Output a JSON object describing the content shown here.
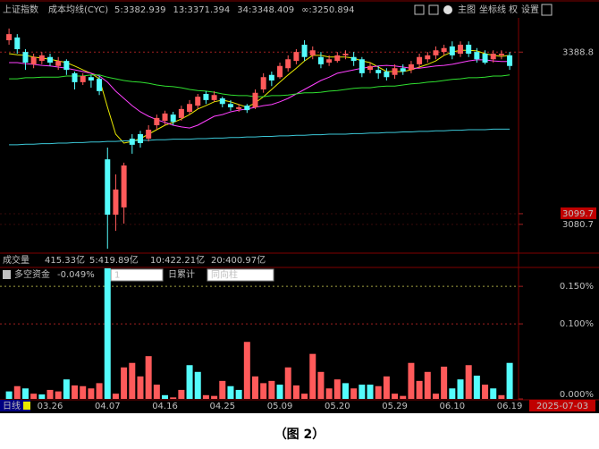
{
  "header": {
    "index_name": "上证指数",
    "indicator": "成本均线(CYC)"
  },
  "toolbar": [
    "主图",
    "坐标线",
    "权",
    "设置"
  ],
  "volume_bar": {
    "title": "成交量",
    "value": "415.33亿",
    "ma": [
      "5:419.89亿",
      "10:422.21亿",
      "20:400.97亿"
    ]
  },
  "indicator_bar": {
    "title": "多空资金",
    "value": "-0.049%",
    "period": "1",
    "mode": "日累计",
    "style": "同向柱"
  },
  "footer": {
    "period": "日线",
    "date": "2025-07-03"
  },
  "caption": "（图 2）",
  "chart_data": [
    {
      "type": "candlestick",
      "categories": [
        null,
        null,
        null,
        null,
        null,
        "03.26",
        null,
        null,
        null,
        null,
        null,
        null,
        "04.07",
        null,
        null,
        null,
        null,
        null,
        null,
        "04.16",
        null,
        null,
        null,
        null,
        null,
        null,
        "04.25",
        null,
        null,
        null,
        null,
        null,
        null,
        "05.09",
        null,
        null,
        null,
        null,
        null,
        null,
        "05.20",
        null,
        null,
        null,
        null,
        null,
        null,
        "05.29",
        null,
        null,
        null,
        null,
        null,
        null,
        "06.10",
        null,
        null,
        null,
        null,
        null,
        null,
        "06.19"
      ],
      "open": [
        3410,
        3415,
        3389,
        3367,
        3373,
        3380,
        3364,
        3373,
        3351,
        3335,
        3344,
        3341,
        3197,
        3098,
        3111,
        3234,
        3242,
        3234,
        3258,
        3266,
        3277,
        3271,
        3282,
        3293,
        3314,
        3303,
        3306,
        3296,
        3287,
        3293,
        3290,
        3322,
        3348,
        3344,
        3360,
        3373,
        3402,
        3383,
        3380,
        3370,
        3373,
        3383,
        3380,
        3376,
        3357,
        3357,
        3354,
        3348,
        3360,
        3357,
        3367,
        3376,
        3383,
        3389,
        3399,
        3386,
        3402,
        3389,
        3386,
        3376,
        3383,
        3383
      ],
      "high": [
        3431,
        3421,
        3394,
        3386,
        3389,
        3386,
        3380,
        3376,
        3354,
        3351,
        3348,
        3346,
        3218,
        3170,
        3191,
        3242,
        3248,
        3258,
        3277,
        3284,
        3282,
        3293,
        3303,
        3314,
        3319,
        3319,
        3309,
        3303,
        3296,
        3296,
        3322,
        3351,
        3354,
        3370,
        3383,
        3394,
        3410,
        3399,
        3389,
        3383,
        3389,
        3392,
        3389,
        3380,
        3370,
        3364,
        3360,
        3367,
        3367,
        3373,
        3386,
        3389,
        3399,
        3402,
        3408,
        3408,
        3408,
        3396,
        3392,
        3392,
        3392,
        3389
      ],
      "low": [
        3402,
        3386,
        3357,
        3360,
        3367,
        3364,
        3357,
        3348,
        3322,
        3330,
        3325,
        3312,
        3037,
        3069,
        3082,
        3207,
        3218,
        3229,
        3250,
        3258,
        3258,
        3266,
        3277,
        3287,
        3296,
        3300,
        3290,
        3284,
        3282,
        3280,
        3287,
        3316,
        3328,
        3341,
        3354,
        3367,
        3373,
        3376,
        3360,
        3364,
        3370,
        3376,
        3364,
        3344,
        3351,
        3341,
        3338,
        3341,
        3348,
        3351,
        3360,
        3370,
        3376,
        3383,
        3376,
        3380,
        3380,
        3370,
        3367,
        3370,
        3376,
        3357
      ],
      "close": [
        3421,
        3394,
        3370,
        3380,
        3383,
        3370,
        3373,
        3357,
        3335,
        3346,
        3338,
        3319,
        3098,
        3143,
        3186,
        3223,
        3226,
        3250,
        3271,
        3279,
        3264,
        3287,
        3296,
        3309,
        3303,
        3312,
        3296,
        3290,
        3290,
        3285,
        3316,
        3344,
        3338,
        3364,
        3376,
        3389,
        3380,
        3392,
        3367,
        3376,
        3383,
        3386,
        3373,
        3351,
        3364,
        3351,
        3344,
        3360,
        3354,
        3367,
        3380,
        3383,
        3392,
        3396,
        3383,
        3402,
        3386,
        3376,
        3370,
        3386,
        3386,
        3364
      ],
      "up_color": "#ff5a5a",
      "down_color": "#54fcfc",
      "series": [
        {
          "name": "5:3382.939",
          "color": "#e8e800",
          "values": [
            3386,
            3384,
            3383,
            3380,
            3378,
            3376,
            3373,
            3370,
            3364,
            3357,
            3351,
            3341,
            3290,
            3242,
            3226,
            3229,
            3234,
            3242,
            3250,
            3258,
            3263,
            3269,
            3277,
            3287,
            3293,
            3300,
            3303,
            3300,
            3295,
            3290,
            3298,
            3309,
            3322,
            3335,
            3348,
            3360,
            3373,
            3383,
            3383,
            3380,
            3380,
            3380,
            3378,
            3373,
            3370,
            3362,
            3354,
            3354,
            3354,
            3357,
            3362,
            3367,
            3373,
            3383,
            3389,
            3392,
            3392,
            3391,
            3386,
            3383,
            3381,
            3383
          ]
        },
        {
          "name": "13:3371.394",
          "color": "#ff40ff",
          "values": [
            3370,
            3370,
            3368,
            3367,
            3365,
            3364,
            3362,
            3360,
            3357,
            3354,
            3351,
            3346,
            3335,
            3319,
            3306,
            3293,
            3282,
            3274,
            3268,
            3263,
            3258,
            3255,
            3253,
            3258,
            3266,
            3274,
            3277,
            3282,
            3285,
            3287,
            3290,
            3293,
            3295,
            3300,
            3306,
            3314,
            3322,
            3330,
            3338,
            3344,
            3351,
            3354,
            3357,
            3360,
            3362,
            3364,
            3365,
            3364,
            3362,
            3360,
            3360,
            3362,
            3364,
            3365,
            3367,
            3370,
            3373,
            3375,
            3375,
            3373,
            3372,
            3372
          ]
        },
        {
          "name": "34:3348.409",
          "color": "#30e030",
          "values": [
            3341,
            3341,
            3343,
            3343,
            3344,
            3344,
            3344,
            3346,
            3346,
            3346,
            3348,
            3348,
            3344,
            3341,
            3338,
            3336,
            3335,
            3333,
            3330,
            3328,
            3327,
            3325,
            3322,
            3320,
            3319,
            3317,
            3314,
            3312,
            3311,
            3311,
            3309,
            3309,
            3311,
            3311,
            3312,
            3314,
            3316,
            3316,
            3317,
            3319,
            3320,
            3322,
            3324,
            3325,
            3325,
            3327,
            3328,
            3328,
            3330,
            3332,
            3333,
            3335,
            3336,
            3338,
            3340,
            3341,
            3343,
            3343,
            3344,
            3346,
            3346,
            3348
          ]
        },
        {
          "name": "∞:3250.894",
          "color": "#3cc8d8",
          "values": [
            3223,
            3223,
            3224,
            3224,
            3225,
            3225,
            3226,
            3226,
            3227,
            3227,
            3228,
            3228,
            3229,
            3229,
            3230,
            3230,
            3231,
            3231,
            3232,
            3232,
            3233,
            3233,
            3233,
            3234,
            3234,
            3235,
            3235,
            3236,
            3236,
            3237,
            3237,
            3238,
            3238,
            3239,
            3239,
            3240,
            3240,
            3241,
            3241,
            3242,
            3242,
            3242,
            3243,
            3243,
            3244,
            3244,
            3245,
            3245,
            3246,
            3246,
            3247,
            3247,
            3248,
            3248,
            3249,
            3249,
            3250,
            3250,
            3250,
            3251,
            3251,
            3251
          ]
        }
      ],
      "ylim": [
        3034,
        3450
      ],
      "yticks": [
        3388.8,
        3099.7,
        3080.7
      ],
      "grid": true
    },
    {
      "type": "bar",
      "values": [
        0.01,
        0.017,
        0.014,
        0.007,
        0.006,
        0.012,
        0.01,
        0.026,
        0.018,
        0.017,
        0.014,
        0.021,
        0.174,
        0.007,
        0.042,
        0.048,
        0.03,
        0.057,
        0.019,
        0.005,
        0.002,
        0.012,
        0.045,
        0.036,
        0.005,
        0.004,
        0.024,
        0.017,
        0.012,
        0.076,
        0.03,
        0.021,
        0.024,
        0.019,
        0.042,
        0.018,
        0.007,
        0.06,
        0.036,
        0.014,
        0.026,
        0.021,
        0.014,
        0.019,
        0.019,
        0.017,
        0.03,
        0.007,
        0.004,
        0.048,
        0.024,
        0.036,
        0.007,
        0.043,
        0.014,
        0.026,
        0.045,
        0.031,
        0.019,
        0.014,
        0.005,
        0.048
      ],
      "colors": [
        "#54fcfc",
        "#ff5a5a",
        "#54fcfc",
        "#ff5a5a",
        "#54fcfc",
        "#ff5a5a",
        "#ff5a5a",
        "#54fcfc",
        "#ff5a5a",
        "#ff5a5a",
        "#ff5a5a",
        "#ff5a5a",
        "#54fcfc",
        "#ff5a5a",
        "#ff5a5a",
        "#ff5a5a",
        "#ff5a5a",
        "#ff5a5a",
        "#ff5a5a",
        "#54fcfc",
        "#ff5a5a",
        "#ff5a5a",
        "#54fcfc",
        "#54fcfc",
        "#ff5a5a",
        "#ff5a5a",
        "#ff5a5a",
        "#54fcfc",
        "#54fcfc",
        "#ff5a5a",
        "#ff5a5a",
        "#ff5a5a",
        "#ff5a5a",
        "#54fcfc",
        "#ff5a5a",
        "#ff5a5a",
        "#ff5a5a",
        "#ff5a5a",
        "#ff5a5a",
        "#ff5a5a",
        "#ff5a5a",
        "#54fcfc",
        "#ff5a5a",
        "#54fcfc",
        "#54fcfc",
        "#ff5a5a",
        "#ff5a5a",
        "#ff5a5a",
        "#ff5a5a",
        "#ff5a5a",
        "#ff5a5a",
        "#ff5a5a",
        "#ff5a5a",
        "#ff5a5a",
        "#54fcfc",
        "#54fcfc",
        "#ff5a5a",
        "#54fcfc",
        "#ff5a5a",
        "#54fcfc",
        "#ff5a5a",
        "#54fcfc"
      ],
      "ylim": [
        0,
        0.174
      ],
      "yticks": [
        {
          "value": 0.15,
          "label": "0.150%"
        },
        {
          "value": 0.1,
          "label": "0.100%"
        },
        {
          "value": 0,
          "label": "0.000%"
        }
      ],
      "grid": true
    }
  ]
}
